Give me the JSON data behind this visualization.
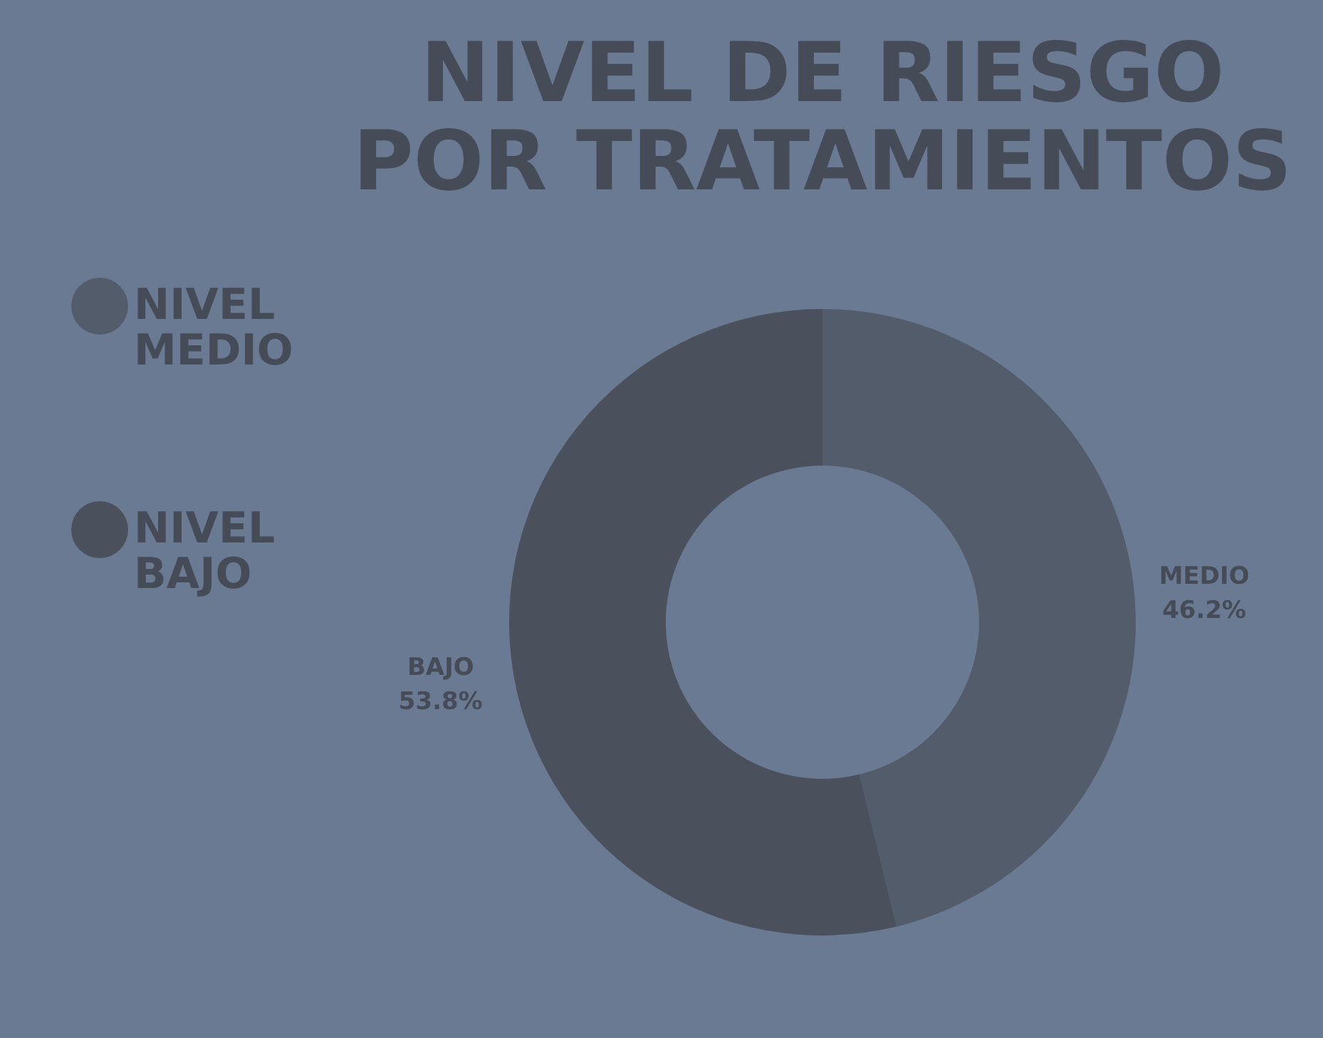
{
  "chart_data": {
    "type": "donut",
    "title": "NIVEL DE RIESGO POR TRATAMIENTOS",
    "categories": [
      "NIVEL MEDIO",
      "NIVEL BAJO"
    ],
    "values": [
      46.2,
      53.8
    ],
    "colors": [
      "#535c6b",
      "#4a515d"
    ],
    "value_labels": [
      "MEDIO 46.2%",
      "BAJO 53.8%"
    ],
    "legend": "left"
  }
}
